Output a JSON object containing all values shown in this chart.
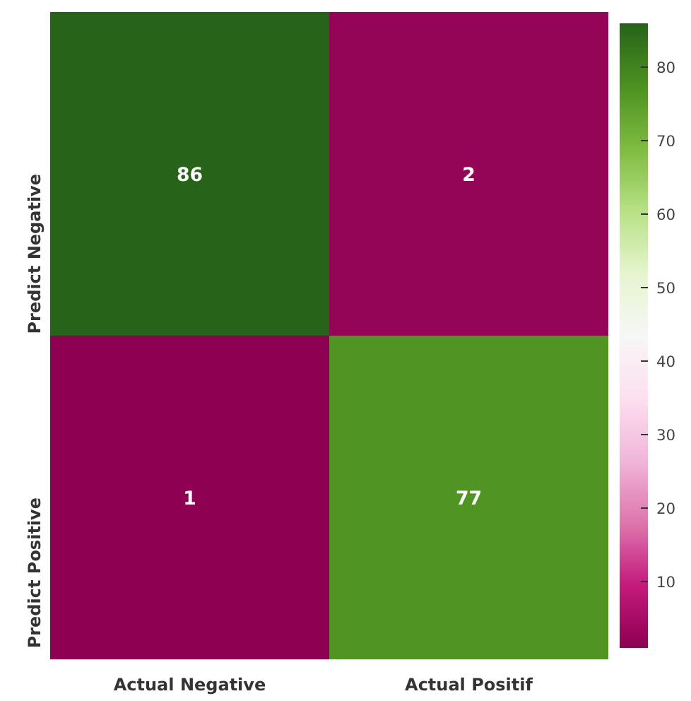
{
  "chart_data": {
    "type": "heatmap",
    "categories": [
      "Actual Negative",
      "Actual Positif"
    ],
    "y_categories": [
      "Predict Negative",
      "Predict Positive"
    ],
    "cells": [
      [
        86,
        2
      ],
      [
        1,
        77
      ]
    ],
    "data_labels": true,
    "clim": [
      1,
      86
    ],
    "cticks": [
      10,
      20,
      30,
      40,
      50,
      60,
      70,
      80
    ]
  }
}
